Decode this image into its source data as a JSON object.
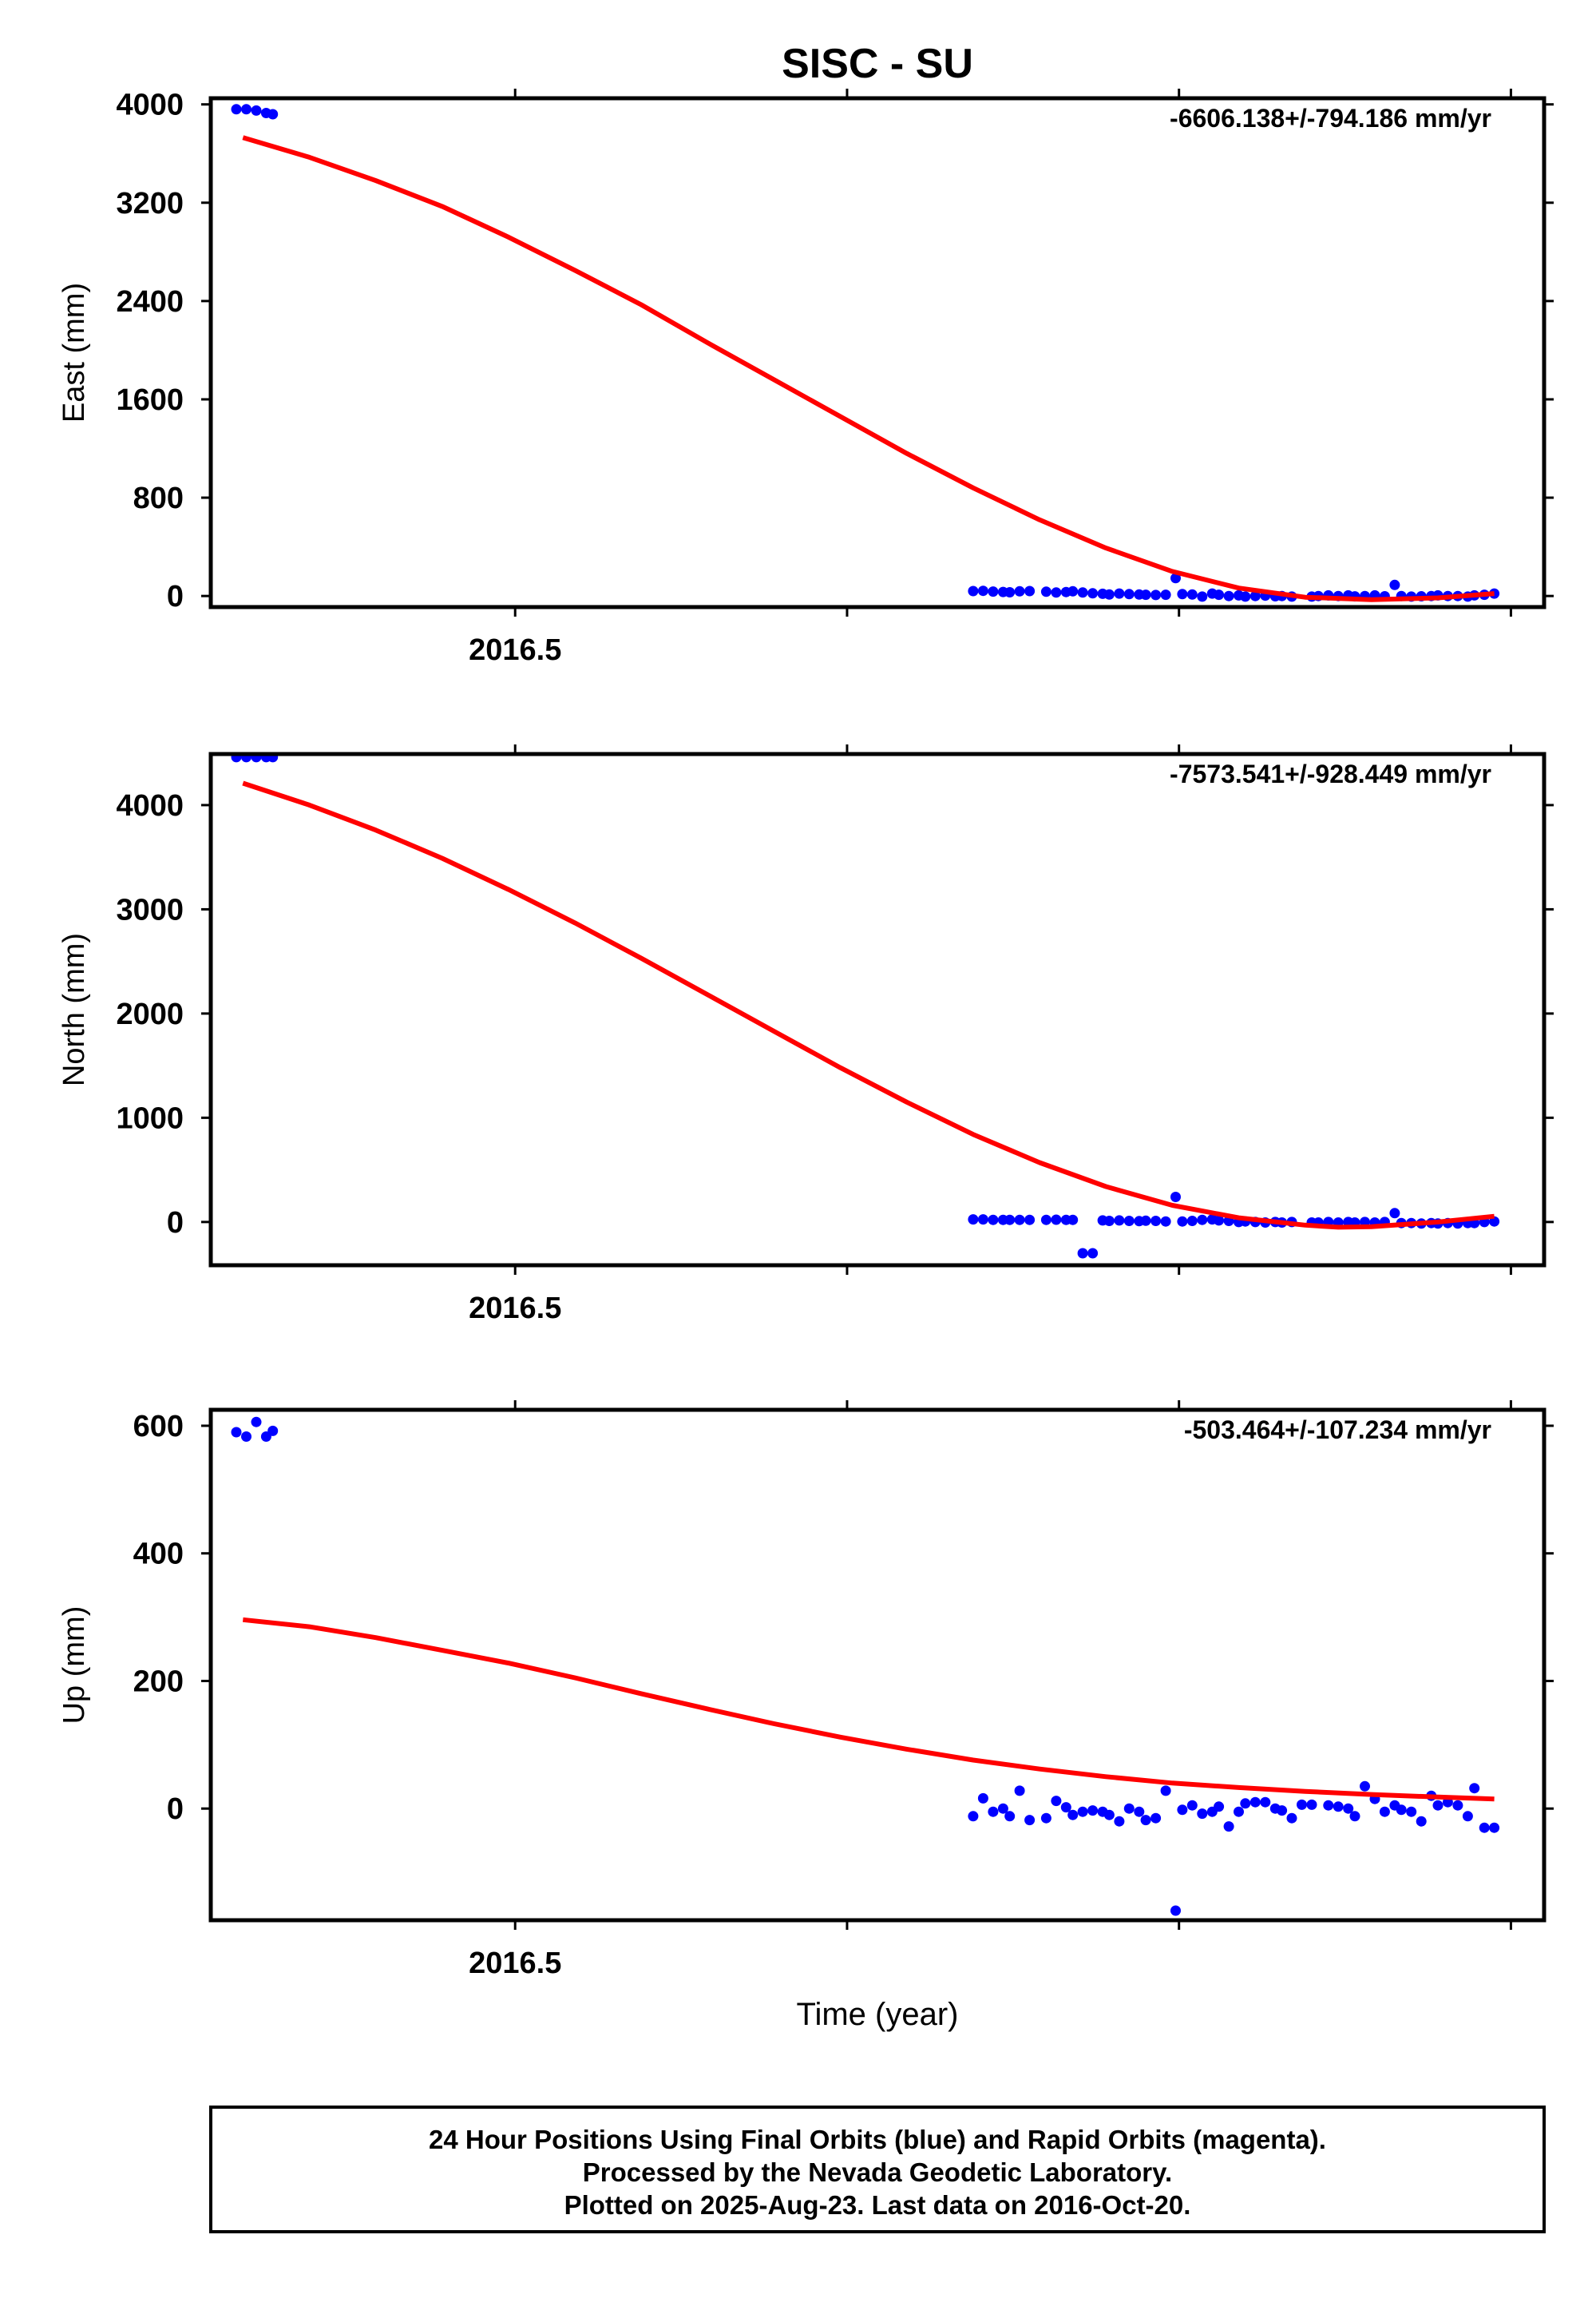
{
  "title": "SISC - SU",
  "xlabel": "Time (year)",
  "colors": {
    "data": "#0000ff",
    "fit": "#ff0000",
    "frame": "#000000"
  },
  "chart_data": [
    {
      "type": "scatter",
      "ylabel": "East (mm)",
      "rate_label": "-6606.138+/-794.186 mm/yr",
      "xlim": [
        2016.4083,
        2016.81
      ],
      "ylim": [
        -90,
        4050
      ],
      "yticks": [
        0,
        800,
        1600,
        2400,
        3200,
        4000
      ],
      "ytick_labels": [
        "0",
        "800",
        "1600",
        "2400",
        "3200",
        "4000"
      ],
      "xticks": [
        2016.5,
        2016.6,
        2016.7,
        2016.8
      ],
      "xtick_labels": [
        "2016.5",
        "",
        "",
        ""
      ],
      "points": [
        [
          2016.416,
          3960
        ],
        [
          2016.419,
          3960
        ],
        [
          2016.422,
          3950
        ],
        [
          2016.425,
          3930
        ],
        [
          2016.427,
          3920
        ],
        [
          2016.638,
          40
        ],
        [
          2016.641,
          42
        ],
        [
          2016.644,
          36
        ],
        [
          2016.647,
          33
        ],
        [
          2016.649,
          30
        ],
        [
          2016.652,
          38
        ],
        [
          2016.655,
          40
        ],
        [
          2016.66,
          35
        ],
        [
          2016.663,
          28
        ],
        [
          2016.666,
          32
        ],
        [
          2016.668,
          38
        ],
        [
          2016.671,
          28
        ],
        [
          2016.674,
          22
        ],
        [
          2016.677,
          18
        ],
        [
          2016.679,
          12
        ],
        [
          2016.682,
          20
        ],
        [
          2016.685,
          15
        ],
        [
          2016.688,
          12
        ],
        [
          2016.69,
          10
        ],
        [
          2016.693,
          8
        ],
        [
          2016.696,
          10
        ],
        [
          2016.699,
          145
        ],
        [
          2016.701,
          15
        ],
        [
          2016.704,
          12
        ],
        [
          2016.707,
          -5
        ],
        [
          2016.71,
          20
        ],
        [
          2016.712,
          10
        ],
        [
          2016.715,
          0
        ],
        [
          2016.718,
          5
        ],
        [
          2016.72,
          -5
        ],
        [
          2016.723,
          0
        ],
        [
          2016.726,
          3
        ],
        [
          2016.729,
          -2
        ],
        [
          2016.731,
          0
        ],
        [
          2016.734,
          -5
        ],
        [
          2016.74,
          -5
        ],
        [
          2016.742,
          0
        ],
        [
          2016.745,
          5
        ],
        [
          2016.748,
          0
        ],
        [
          2016.751,
          5
        ],
        [
          2016.753,
          -3
        ],
        [
          2016.756,
          0
        ],
        [
          2016.759,
          5
        ],
        [
          2016.762,
          -2
        ],
        [
          2016.765,
          90
        ],
        [
          2016.767,
          0
        ],
        [
          2016.77,
          -5
        ],
        [
          2016.773,
          -2
        ],
        [
          2016.776,
          0
        ],
        [
          2016.778,
          5
        ],
        [
          2016.781,
          0
        ],
        [
          2016.784,
          0
        ],
        [
          2016.787,
          -5
        ],
        [
          2016.789,
          5
        ],
        [
          2016.792,
          10
        ],
        [
          2016.795,
          20
        ]
      ],
      "fit": [
        [
          2016.418,
          3730
        ],
        [
          2016.438,
          3570
        ],
        [
          2016.458,
          3380
        ],
        [
          2016.478,
          3170
        ],
        [
          2016.498,
          2920
        ],
        [
          2016.518,
          2650
        ],
        [
          2016.538,
          2370
        ],
        [
          2016.558,
          2060
        ],
        [
          2016.578,
          1760
        ],
        [
          2016.598,
          1460
        ],
        [
          2016.618,
          1160
        ],
        [
          2016.638,
          880
        ],
        [
          2016.658,
          620
        ],
        [
          2016.678,
          390
        ],
        [
          2016.698,
          200
        ],
        [
          2016.718,
          65
        ],
        [
          2016.738,
          -10
        ],
        [
          2016.758,
          -30
        ],
        [
          2016.778,
          -15
        ],
        [
          2016.795,
          20
        ]
      ]
    },
    {
      "type": "scatter",
      "ylabel": "North (mm)",
      "rate_label": "-7573.541+/-928.449 mm/yr",
      "xlim": [
        2016.4083,
        2016.81
      ],
      "ylim": [
        -415,
        4490
      ],
      "yticks": [
        0,
        1000,
        2000,
        3000,
        4000
      ],
      "ytick_labels": [
        "0",
        "1000",
        "2000",
        "3000",
        "4000"
      ],
      "xticks": [
        2016.5,
        2016.6,
        2016.7,
        2016.8
      ],
      "xtick_labels": [
        "2016.5",
        "",
        "",
        ""
      ],
      "points": [
        [
          2016.416,
          4460
        ],
        [
          2016.419,
          4460
        ],
        [
          2016.422,
          4460
        ],
        [
          2016.425,
          4460
        ],
        [
          2016.427,
          4460
        ],
        [
          2016.638,
          25
        ],
        [
          2016.641,
          25
        ],
        [
          2016.644,
          20
        ],
        [
          2016.647,
          20
        ],
        [
          2016.649,
          20
        ],
        [
          2016.652,
          20
        ],
        [
          2016.655,
          20
        ],
        [
          2016.66,
          20
        ],
        [
          2016.663,
          22
        ],
        [
          2016.666,
          20
        ],
        [
          2016.668,
          20
        ],
        [
          2016.671,
          -300
        ],
        [
          2016.674,
          -300
        ],
        [
          2016.677,
          15
        ],
        [
          2016.679,
          10
        ],
        [
          2016.682,
          15
        ],
        [
          2016.685,
          10
        ],
        [
          2016.688,
          8
        ],
        [
          2016.69,
          12
        ],
        [
          2016.693,
          10
        ],
        [
          2016.696,
          5
        ],
        [
          2016.699,
          240
        ],
        [
          2016.701,
          5
        ],
        [
          2016.704,
          10
        ],
        [
          2016.707,
          20
        ],
        [
          2016.71,
          25
        ],
        [
          2016.712,
          15
        ],
        [
          2016.715,
          10
        ],
        [
          2016.718,
          0
        ],
        [
          2016.72,
          5
        ],
        [
          2016.723,
          0
        ],
        [
          2016.726,
          -5
        ],
        [
          2016.729,
          0
        ],
        [
          2016.731,
          -5
        ],
        [
          2016.734,
          0
        ],
        [
          2016.74,
          -5
        ],
        [
          2016.742,
          -5
        ],
        [
          2016.745,
          0
        ],
        [
          2016.748,
          -5
        ],
        [
          2016.751,
          0
        ],
        [
          2016.753,
          -5
        ],
        [
          2016.756,
          0
        ],
        [
          2016.759,
          -5
        ],
        [
          2016.762,
          0
        ],
        [
          2016.765,
          85
        ],
        [
          2016.767,
          -10
        ],
        [
          2016.77,
          -10
        ],
        [
          2016.773,
          -15
        ],
        [
          2016.776,
          -10
        ],
        [
          2016.778,
          -15
        ],
        [
          2016.781,
          -10
        ],
        [
          2016.784,
          -15
        ],
        [
          2016.787,
          -10
        ],
        [
          2016.789,
          -10
        ],
        [
          2016.792,
          0
        ],
        [
          2016.795,
          5
        ]
      ],
      "fit": [
        [
          2016.418,
          4210
        ],
        [
          2016.438,
          4000
        ],
        [
          2016.458,
          3760
        ],
        [
          2016.478,
          3490
        ],
        [
          2016.498,
          3190
        ],
        [
          2016.518,
          2870
        ],
        [
          2016.538,
          2530
        ],
        [
          2016.558,
          2180
        ],
        [
          2016.578,
          1830
        ],
        [
          2016.598,
          1480
        ],
        [
          2016.618,
          1150
        ],
        [
          2016.638,
          840
        ],
        [
          2016.658,
          570
        ],
        [
          2016.678,
          340
        ],
        [
          2016.698,
          160
        ],
        [
          2016.718,
          40
        ],
        [
          2016.738,
          -30
        ],
        [
          2016.748,
          -50
        ],
        [
          2016.758,
          -45
        ],
        [
          2016.778,
          0
        ],
        [
          2016.795,
          55
        ]
      ]
    },
    {
      "type": "scatter",
      "ylabel": "Up (mm)",
      "rate_label": "-503.464+/-107.234 mm/yr",
      "xlim": [
        2016.4083,
        2016.81
      ],
      "ylim": [
        -175,
        625
      ],
      "yticks": [
        0,
        200,
        400,
        600
      ],
      "ytick_labels": [
        "0",
        "200",
        "400",
        "600"
      ],
      "xticks": [
        2016.5,
        2016.6,
        2016.7,
        2016.8
      ],
      "xtick_labels": [
        "2016.5",
        "",
        "",
        ""
      ],
      "points": [
        [
          2016.416,
          590
        ],
        [
          2016.419,
          583
        ],
        [
          2016.422,
          606
        ],
        [
          2016.425,
          583
        ],
        [
          2016.427,
          592
        ],
        [
          2016.638,
          -12
        ],
        [
          2016.641,
          16
        ],
        [
          2016.644,
          -5
        ],
        [
          2016.647,
          0
        ],
        [
          2016.649,
          -12
        ],
        [
          2016.652,
          28
        ],
        [
          2016.655,
          -18
        ],
        [
          2016.66,
          -15
        ],
        [
          2016.663,
          12
        ],
        [
          2016.666,
          2
        ],
        [
          2016.668,
          -10
        ],
        [
          2016.671,
          -5
        ],
        [
          2016.674,
          -3
        ],
        [
          2016.677,
          -5
        ],
        [
          2016.679,
          -10
        ],
        [
          2016.682,
          -20
        ],
        [
          2016.685,
          0
        ],
        [
          2016.688,
          -5
        ],
        [
          2016.69,
          -18
        ],
        [
          2016.693,
          -15
        ],
        [
          2016.696,
          28
        ],
        [
          2016.699,
          -160
        ],
        [
          2016.701,
          -2
        ],
        [
          2016.704,
          5
        ],
        [
          2016.707,
          -8
        ],
        [
          2016.71,
          -5
        ],
        [
          2016.712,
          3
        ],
        [
          2016.715,
          -28
        ],
        [
          2016.718,
          -5
        ],
        [
          2016.72,
          8
        ],
        [
          2016.723,
          10
        ],
        [
          2016.726,
          10
        ],
        [
          2016.729,
          0
        ],
        [
          2016.731,
          -3
        ],
        [
          2016.734,
          -15
        ],
        [
          2016.737,
          6
        ],
        [
          2016.74,
          6
        ],
        [
          2016.745,
          5
        ],
        [
          2016.748,
          3
        ],
        [
          2016.751,
          0
        ],
        [
          2016.753,
          -12
        ],
        [
          2016.756,
          35
        ],
        [
          2016.759,
          15
        ],
        [
          2016.762,
          -5
        ],
        [
          2016.765,
          5
        ],
        [
          2016.767,
          -2
        ],
        [
          2016.77,
          -5
        ],
        [
          2016.773,
          -20
        ],
        [
          2016.776,
          20
        ],
        [
          2016.778,
          5
        ],
        [
          2016.781,
          10
        ],
        [
          2016.784,
          5
        ],
        [
          2016.787,
          -12
        ],
        [
          2016.789,
          32
        ],
        [
          2016.792,
          -30
        ],
        [
          2016.795,
          -30
        ]
      ],
      "fit": [
        [
          2016.418,
          296
        ],
        [
          2016.438,
          285
        ],
        [
          2016.458,
          268
        ],
        [
          2016.478,
          248
        ],
        [
          2016.498,
          228
        ],
        [
          2016.518,
          205
        ],
        [
          2016.538,
          180
        ],
        [
          2016.558,
          156
        ],
        [
          2016.578,
          133
        ],
        [
          2016.598,
          112
        ],
        [
          2016.618,
          93
        ],
        [
          2016.638,
          76
        ],
        [
          2016.658,
          62
        ],
        [
          2016.678,
          50
        ],
        [
          2016.698,
          40
        ],
        [
          2016.718,
          33
        ],
        [
          2016.738,
          27
        ],
        [
          2016.758,
          22
        ],
        [
          2016.778,
          18
        ],
        [
          2016.795,
          15
        ]
      ]
    }
  ],
  "footer": {
    "line1": "24 Hour Positions Using Final Orbits (blue) and Rapid Orbits (magenta).",
    "line2": "Processed by the Nevada Geodetic Laboratory.",
    "line3": "Plotted on 2025-Aug-23. Last data on 2016-Oct-20."
  }
}
